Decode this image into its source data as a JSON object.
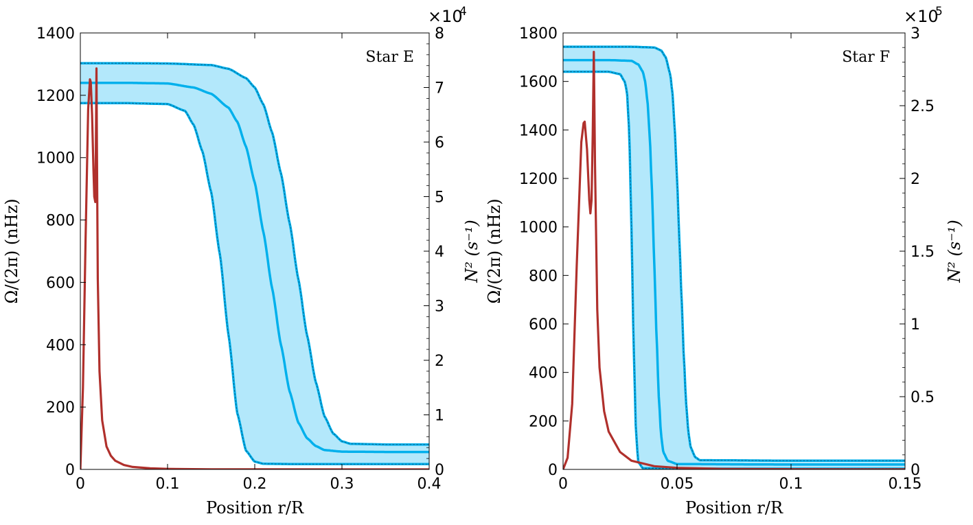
{
  "chart_data": [
    {
      "type": "line",
      "annotation": "Star E",
      "xlabel": "Position r/R",
      "ylabel": "Ω/(2π) (nHz)",
      "y2label": "N² (s⁻¹)",
      "xlim": [
        0,
        0.4
      ],
      "ylim": [
        0,
        1400
      ],
      "y2lim": [
        0,
        80000
      ],
      "x_ticks": [
        0,
        0.1,
        0.2,
        0.3,
        0.4
      ],
      "x_tick_labels": [
        "0",
        "0.1",
        "0.2",
        "0.3",
        "0.4"
      ],
      "y_ticks": [
        0,
        200,
        400,
        600,
        800,
        1000,
        1200,
        1400
      ],
      "y_tick_labels": [
        "0",
        "200",
        "400",
        "600",
        "800",
        "1000",
        "1200",
        "1400"
      ],
      "y2_ticks": [
        0,
        10000,
        20000,
        30000,
        40000,
        50000,
        60000,
        70000,
        80000
      ],
      "y2_tick_labels": [
        "0",
        "1",
        "2",
        "3",
        "4",
        "5",
        "6",
        "7",
        "8"
      ],
      "y2_multiplier": "×10",
      "y2_multiplier_exp": "4",
      "colors": {
        "band": "#b3e8fb",
        "rotation": "#00b0ec",
        "edge": "#0a6f96",
        "buoyancy": "#b0302c"
      },
      "series": [
        {
          "role": "rotation_profile",
          "axis": "left",
          "x": [
            0,
            0.05,
            0.1,
            0.13,
            0.15,
            0.17,
            0.18,
            0.19,
            0.2,
            0.21,
            0.22,
            0.23,
            0.24,
            0.25,
            0.26,
            0.27,
            0.28,
            0.3,
            0.35,
            0.4
          ],
          "values": [
            1240,
            1240,
            1238,
            1225,
            1205,
            1160,
            1115,
            1035,
            920,
            760,
            580,
            400,
            250,
            150,
            100,
            75,
            62,
            57,
            56,
            56
          ]
        },
        {
          "role": "band_upper",
          "axis": "left",
          "x": [
            0,
            0.05,
            0.1,
            0.15,
            0.17,
            0.19,
            0.2,
            0.21,
            0.22,
            0.23,
            0.24,
            0.25,
            0.26,
            0.27,
            0.28,
            0.29,
            0.3,
            0.31,
            0.35,
            0.4
          ],
          "values": [
            1303,
            1303,
            1302,
            1297,
            1285,
            1255,
            1225,
            1170,
            1080,
            950,
            790,
            610,
            430,
            280,
            170,
            115,
            90,
            82,
            80,
            80
          ]
        },
        {
          "role": "band_lower",
          "axis": "left",
          "x": [
            0,
            0.05,
            0.1,
            0.12,
            0.13,
            0.14,
            0.15,
            0.16,
            0.17,
            0.18,
            0.19,
            0.2,
            0.21,
            0.25,
            0.3,
            0.4
          ],
          "values": [
            1175,
            1175,
            1172,
            1150,
            1105,
            1020,
            890,
            690,
            430,
            180,
            60,
            25,
            18,
            17,
            17,
            17
          ]
        },
        {
          "role": "buoyancy_frequency",
          "axis": "right",
          "x": [
            0,
            0.003,
            0.006,
            0.009,
            0.011,
            0.012,
            0.0135,
            0.015,
            0.016,
            0.0172,
            0.0178,
            0.0185,
            0.019,
            0.02,
            0.022,
            0.025,
            0.03,
            0.035,
            0.04,
            0.05,
            0.06,
            0.08,
            0.1,
            0.15,
            0.2,
            0.4
          ],
          "values": [
            0,
            15000,
            42000,
            66000,
            71500,
            71000,
            65000,
            55000,
            50000,
            49000,
            58000,
            73500,
            60000,
            35000,
            18000,
            9000,
            4200,
            2500,
            1600,
            800,
            450,
            200,
            100,
            30,
            10,
            0
          ]
        }
      ]
    },
    {
      "type": "line",
      "annotation": "Star F",
      "xlabel": "Position r/R",
      "ylabel": "Ω/(2π) (nHz)",
      "y2label": "N² (s⁻¹)",
      "xlim": [
        0,
        0.15
      ],
      "ylim": [
        0,
        1800
      ],
      "y2lim": [
        0,
        300000
      ],
      "x_ticks": [
        0,
        0.05,
        0.1,
        0.15
      ],
      "x_tick_labels": [
        "0",
        "0.05",
        "0.1",
        "0.15"
      ],
      "y_ticks": [
        0,
        200,
        400,
        600,
        800,
        1000,
        1200,
        1400,
        1600,
        1800
      ],
      "y_tick_labels": [
        "0",
        "200",
        "400",
        "600",
        "800",
        "1000",
        "1200",
        "1400",
        "1600",
        "1800"
      ],
      "y2_ticks": [
        0,
        50000,
        100000,
        150000,
        200000,
        250000,
        300000
      ],
      "y2_tick_labels": [
        "0",
        "0.5",
        "1",
        "1.5",
        "2",
        "2.5",
        "3"
      ],
      "y2_multiplier": "×10",
      "y2_multiplier_exp": "5",
      "colors": {
        "band": "#b3e8fb",
        "rotation": "#00b0ec",
        "edge": "#0a6f96",
        "buoyancy": "#b0302c"
      },
      "series": [
        {
          "role": "rotation_profile",
          "axis": "left",
          "x": [
            0,
            0.02,
            0.03,
            0.033,
            0.035,
            0.036,
            0.037,
            0.038,
            0.039,
            0.04,
            0.041,
            0.042,
            0.043,
            0.044,
            0.046,
            0.05,
            0.1,
            0.15
          ],
          "values": [
            1688,
            1688,
            1685,
            1670,
            1640,
            1600,
            1520,
            1380,
            1150,
            850,
            550,
            300,
            140,
            70,
            35,
            22,
            20,
            20
          ]
        },
        {
          "role": "band_upper",
          "axis": "left",
          "x": [
            0,
            0.03,
            0.04,
            0.043,
            0.045,
            0.047,
            0.048,
            0.049,
            0.05,
            0.051,
            0.052,
            0.053,
            0.054,
            0.055,
            0.056,
            0.058,
            0.06,
            0.1,
            0.15
          ],
          "values": [
            1743,
            1743,
            1740,
            1728,
            1700,
            1630,
            1550,
            1400,
            1200,
            950,
            700,
            460,
            270,
            150,
            90,
            50,
            38,
            36,
            36
          ]
        },
        {
          "role": "band_lower",
          "axis": "left",
          "x": [
            0,
            0.02,
            0.025,
            0.027,
            0.028,
            0.029,
            0.03,
            0.031,
            0.032,
            0.033,
            0.035,
            0.05,
            0.1,
            0.15
          ],
          "values": [
            1640,
            1640,
            1630,
            1600,
            1560,
            1400,
            1000,
            500,
            150,
            30,
            5,
            3,
            3,
            3
          ]
        },
        {
          "role": "buoyancy_frequency",
          "axis": "right",
          "x": [
            0,
            0.002,
            0.004,
            0.006,
            0.008,
            0.009,
            0.0095,
            0.0105,
            0.0115,
            0.012,
            0.0125,
            0.013,
            0.0135,
            0.014,
            0.015,
            0.016,
            0.018,
            0.02,
            0.025,
            0.03,
            0.04,
            0.05,
            0.07,
            0.1,
            0.15
          ],
          "values": [
            0,
            8000,
            45000,
            140000,
            225000,
            238000,
            239000,
            220000,
            185000,
            176000,
            185000,
            230000,
            287000,
            210000,
            110000,
            70000,
            40000,
            26000,
            12000,
            6000,
            2200,
            1100,
            400,
            120,
            30
          ]
        }
      ]
    }
  ]
}
